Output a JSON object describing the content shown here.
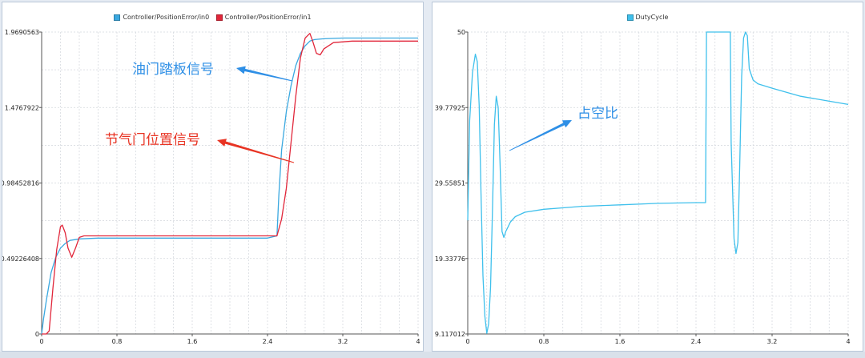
{
  "colors": {
    "throttle_signal": "#e1263a",
    "pedal_signal": "#3aa8e0",
    "duty_cycle": "#3fc0ec",
    "annotation_blue": "#2e8fe6",
    "annotation_red": "#e83323",
    "grid": "#d2d6dc",
    "axis": "#555555"
  },
  "chart_data": [
    {
      "type": "line",
      "title": "",
      "legend": [
        "Controller/PositionError/in0",
        "Controller/PositionError/in1"
      ],
      "legend_placement": "top-center",
      "grid": true,
      "xlim": [
        0,
        4
      ],
      "ylim": [
        0,
        1.9690563
      ],
      "x_ticks": [
        "0",
        "0.8",
        "1.6",
        "2.4",
        "3.2",
        "4"
      ],
      "y_ticks": [
        "0",
        "0.49226408",
        "0.98452816",
        "1.4767922",
        "1.9690563"
      ],
      "annotations": [
        "油门踏板信号",
        "节气门位置信号"
      ],
      "series": [
        {
          "name": "Controller/PositionError/in0",
          "x": [
            0,
            0.02,
            0.05,
            0.1,
            0.15,
            0.2,
            0.25,
            0.3,
            0.4,
            0.6,
            1.0,
            1.6,
            2.0,
            2.4,
            2.5,
            2.52,
            2.55,
            2.6,
            2.65,
            2.7,
            2.75,
            2.8,
            2.85,
            2.9,
            3.0,
            3.2,
            3.5,
            4.0
          ],
          "y": [
            0,
            0.1,
            0.22,
            0.4,
            0.5,
            0.56,
            0.59,
            0.61,
            0.62,
            0.625,
            0.625,
            0.625,
            0.625,
            0.625,
            0.64,
            0.9,
            1.2,
            1.45,
            1.62,
            1.75,
            1.83,
            1.88,
            1.91,
            1.92,
            1.925,
            1.93,
            1.93,
            1.93
          ]
        },
        {
          "name": "Controller/PositionError/in1",
          "x": [
            0,
            0.05,
            0.08,
            0.12,
            0.16,
            0.2,
            0.22,
            0.25,
            0.28,
            0.32,
            0.36,
            0.4,
            0.45,
            0.5,
            0.8,
            1.6,
            2.4,
            2.5,
            2.55,
            2.6,
            2.65,
            2.7,
            2.75,
            2.8,
            2.85,
            2.88,
            2.92,
            2.96,
            3.0,
            3.1,
            3.3,
            4.0
          ],
          "y": [
            0,
            0,
            0.02,
            0.3,
            0.55,
            0.7,
            0.71,
            0.66,
            0.56,
            0.5,
            0.56,
            0.63,
            0.64,
            0.64,
            0.64,
            0.64,
            0.64,
            0.64,
            0.75,
            0.95,
            1.25,
            1.55,
            1.8,
            1.93,
            1.96,
            1.91,
            1.83,
            1.82,
            1.86,
            1.9,
            1.91,
            1.91
          ]
        }
      ]
    },
    {
      "type": "line",
      "title": "",
      "legend": [
        "DutyCycle"
      ],
      "legend_placement": "top-center",
      "grid": true,
      "xlim": [
        0,
        4
      ],
      "ylim": [
        9.117012,
        50
      ],
      "x_ticks": [
        "0",
        "0.8",
        "1.6",
        "2.4",
        "3.2",
        "4"
      ],
      "y_ticks": [
        "9.117012",
        "19.33776",
        "29.55851",
        "39.77925",
        "50"
      ],
      "annotations": [
        "占空比"
      ],
      "series": [
        {
          "name": "DutyCycle",
          "x": [
            0,
            0.02,
            0.05,
            0.08,
            0.1,
            0.12,
            0.14,
            0.16,
            0.18,
            0.2,
            0.22,
            0.24,
            0.26,
            0.28,
            0.3,
            0.32,
            0.34,
            0.36,
            0.38,
            0.4,
            0.45,
            0.5,
            0.6,
            0.8,
            1.0,
            1.2,
            1.6,
            2.0,
            2.4,
            2.5,
            2.51,
            2.55,
            2.7,
            2.76,
            2.77,
            2.8,
            2.82,
            2.84,
            2.86,
            2.88,
            2.9,
            2.92,
            2.94,
            2.96,
            3.0,
            3.05,
            3.2,
            3.5,
            4.0
          ],
          "y": [
            24.5,
            38.0,
            44.5,
            47.0,
            46.0,
            40.0,
            28.0,
            17.0,
            11.5,
            9.2,
            10.5,
            15.5,
            26.0,
            37.5,
            41.3,
            39.8,
            32.0,
            23.0,
            22.2,
            23.0,
            24.3,
            25.0,
            25.6,
            26.0,
            26.2,
            26.4,
            26.6,
            26.8,
            26.9,
            26.9,
            50,
            50,
            50,
            50,
            35.0,
            22.0,
            20.0,
            21.5,
            32.0,
            44.0,
            49.2,
            50,
            49.5,
            45.0,
            43.5,
            43.0,
            42.4,
            41.3,
            40.2
          ]
        }
      ]
    }
  ]
}
